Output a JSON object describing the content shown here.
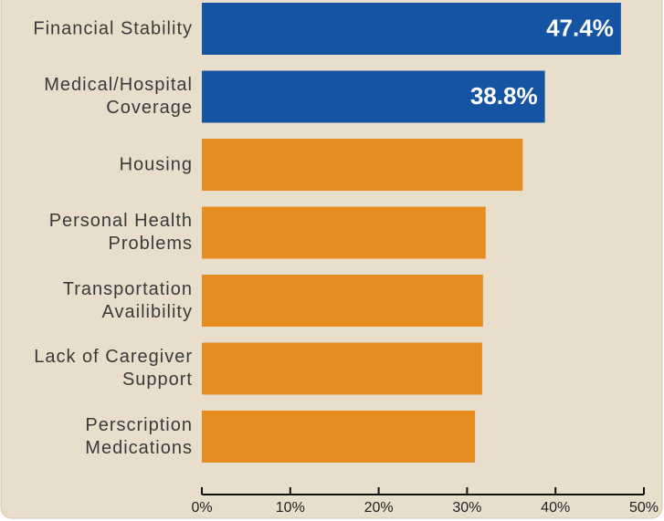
{
  "chart_data": {
    "type": "hbar",
    "categories": [
      "Financial Stability",
      "Medical/Hospital\nCoverage",
      "Housing",
      "Personal Health\nProblems",
      "Transportation\nAvailibility",
      "Lack of Caregiver\nSupport",
      "Perscription\nMedications"
    ],
    "values": [
      47.4,
      38.8,
      36.3,
      32.1,
      31.8,
      31.7,
      30.9
    ],
    "value_labels": [
      "47.4%",
      "38.8%",
      null,
      null,
      null,
      null,
      null
    ],
    "colors": [
      "#1553a3",
      "#1553a3",
      "#e68d22",
      "#e68d22",
      "#e68d22",
      "#e68d22",
      "#e68d22"
    ],
    "xlim": [
      0,
      50
    ],
    "xticks": [
      {
        "value": 0,
        "label": "0%"
      },
      {
        "value": 10,
        "label": "10%"
      },
      {
        "value": 20,
        "label": "20%"
      },
      {
        "value": 30,
        "label": "30%"
      },
      {
        "value": 40,
        "label": "40%"
      },
      {
        "value": 50,
        "label": "50%"
      }
    ]
  }
}
